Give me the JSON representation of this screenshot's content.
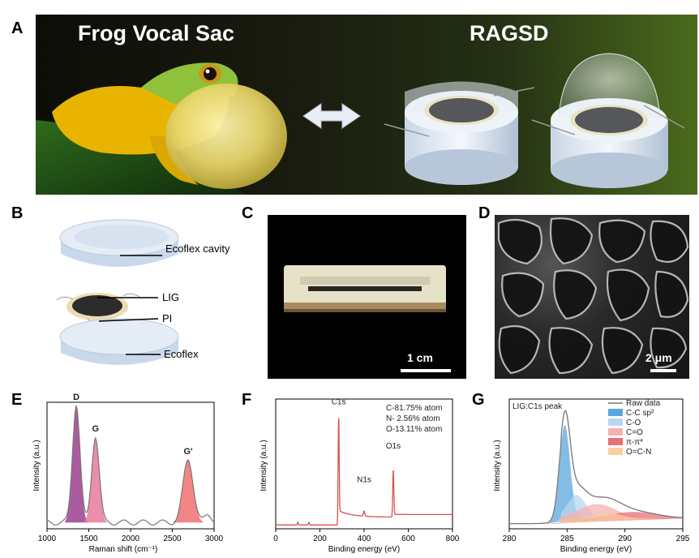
{
  "panels": {
    "A": {
      "label": "A",
      "title_left": "Frog Vocal Sac",
      "title_right": "RAGSD"
    },
    "B": {
      "label": "B",
      "layers": [
        "Ecoflex cavity",
        "LIG",
        "PI",
        "Ecoflex"
      ]
    },
    "C": {
      "label": "C",
      "scale_bar": "1 cm"
    },
    "D": {
      "label": "D",
      "scale_bar": "2 μm"
    },
    "E": {
      "label": "E"
    },
    "F": {
      "label": "F"
    },
    "G": {
      "label": "G"
    }
  },
  "chart_data": [
    {
      "id": "E",
      "type": "line",
      "title": "",
      "xlabel": "Raman shift (cm⁻¹)",
      "ylabel": "Intensity (a.u.)",
      "xlim": [
        1000,
        3000
      ],
      "xticks": [
        1000,
        1500,
        2000,
        2500,
        3000
      ],
      "peaks": [
        {
          "name": "D",
          "x": 1350,
          "height": 0.93,
          "width": 45,
          "color": "#9c3f8f"
        },
        {
          "name": "G",
          "x": 1580,
          "height": 0.68,
          "width": 45,
          "color": "#e77a9a"
        },
        {
          "name": "G'",
          "x": 2690,
          "height": 0.5,
          "width": 60,
          "color": "#f07070"
        }
      ]
    },
    {
      "id": "F",
      "type": "line",
      "title": "",
      "xlabel": "Binding energy (eV)",
      "ylabel": "Intensity (a.u.)",
      "xlim": [
        0,
        800
      ],
      "xticks": [
        0,
        200,
        400,
        600,
        800
      ],
      "peaks": [
        {
          "name": "C1s",
          "x": 284.8
        },
        {
          "name": "N1s",
          "x": 400
        },
        {
          "name": "O1s",
          "x": 532
        }
      ],
      "annotations": [
        "C-81.75% atom",
        "N-  2.56% atom",
        "O-13.11% atom"
      ]
    },
    {
      "id": "G",
      "type": "area",
      "title": "LIG:C1s peak",
      "xlabel": "Binding energy (eV)",
      "ylabel": "Intensity (a.u.)",
      "xlim": [
        280,
        295
      ],
      "xticks": [
        280,
        285,
        290,
        295
      ],
      "series": [
        {
          "name": "Raw data",
          "color": "#777777"
        },
        {
          "name": "C-C sp²",
          "center": 284.8,
          "height": 0.72,
          "width": 0.45,
          "color": "#5aa7de"
        },
        {
          "name": "C-O",
          "center": 285.8,
          "height": 0.18,
          "width": 0.8,
          "color": "#b8d7f0"
        },
        {
          "name": "C=O",
          "center": 287.6,
          "height": 0.11,
          "width": 1.6,
          "color": "#f6b0b0"
        },
        {
          "name": "π-π*",
          "center": 290.8,
          "height": 0.05,
          "width": 2.0,
          "color": "#e8707a"
        },
        {
          "name": "O=C-N",
          "center": 288.6,
          "height": 0.04,
          "width": 1.2,
          "color": "#f8d0a0"
        }
      ]
    }
  ]
}
